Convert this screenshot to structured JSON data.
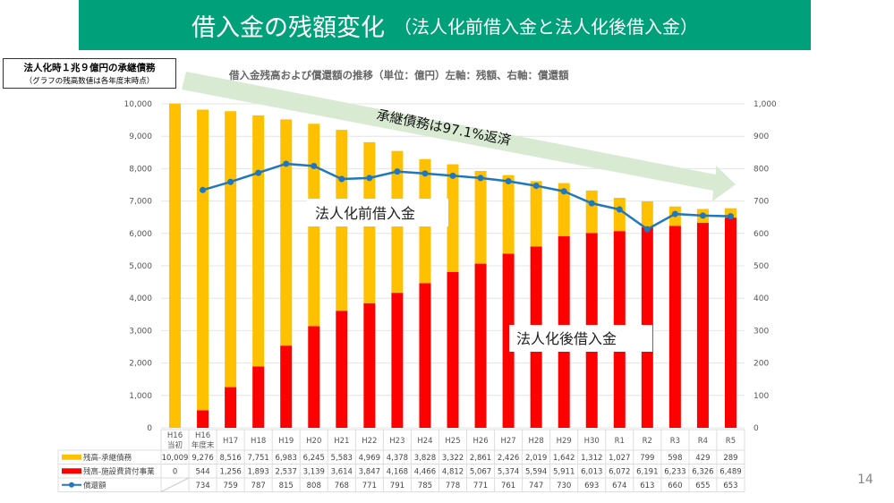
{
  "slide": {
    "title_main": "借入金の残額変化",
    "title_sub": "（法人化前借入金と法人化後借入金）",
    "note_line1": "法人化時１兆９億円の承継債務",
    "note_line2": "（グラフの残高数値は各年度末時点）",
    "arrow_label": "承継債務は97.1%返済",
    "label_pre": "法人化前借入金",
    "label_post": "法人化後借入金",
    "page_number": "14",
    "colors": {
      "header_bg": "#00a07a",
      "inherited_debt": "#ffc000",
      "facility_loan": "#ff0000",
      "repayment_line": "#1f77c0",
      "arrow": "#d9ead3"
    }
  },
  "chart_data": {
    "type": "bar",
    "stacked": true,
    "title": "借入金残高および償還額の推移（単位：億円）左軸：残額、右軸：償還額",
    "categories": [
      "H16\n当初",
      "H16\n年度末",
      "H17",
      "H18",
      "H19",
      "H20",
      "H21",
      "H22",
      "H23",
      "H24",
      "H25",
      "H26",
      "H27",
      "H28",
      "H29",
      "H30",
      "R1",
      "R2",
      "R3",
      "R4",
      "R5"
    ],
    "series": [
      {
        "name": "残高-承継債務",
        "type": "bar",
        "axis": "left",
        "color": "#ffc000",
        "values": [
          10009,
          9276,
          8516,
          7751,
          6983,
          6245,
          5583,
          4969,
          4378,
          3828,
          3322,
          2861,
          2426,
          2019,
          1642,
          1312,
          1027,
          799,
          598,
          429,
          289
        ]
      },
      {
        "name": "残高-施設費貸付事業",
        "type": "bar",
        "axis": "left",
        "color": "#ff0000",
        "values": [
          0,
          544,
          1256,
          1893,
          2537,
          3139,
          3614,
          3847,
          4168,
          4466,
          4812,
          5067,
          5374,
          5594,
          5911,
          6013,
          6072,
          6191,
          6233,
          6326,
          6489
        ]
      },
      {
        "name": "償還額",
        "type": "line",
        "axis": "right",
        "color": "#1f77c0",
        "values": [
          null,
          734,
          759,
          787,
          815,
          808,
          768,
          771,
          791,
          785,
          778,
          771,
          761,
          747,
          730,
          693,
          674,
          613,
          660,
          655,
          653
        ]
      }
    ],
    "left_axis": {
      "min": 0,
      "max": 10000,
      "ticks": [
        "0",
        "1,000",
        "2,000",
        "3,000",
        "4,000",
        "5,000",
        "6,000",
        "7,000",
        "8,000",
        "9,000",
        "10,000"
      ]
    },
    "right_axis": {
      "min": 0,
      "max": 1000,
      "ticks": [
        "0",
        "100",
        "200",
        "300",
        "400",
        "500",
        "600",
        "700",
        "800",
        "900",
        "1,000"
      ]
    },
    "table": {
      "rows": [
        {
          "label": "残高-承継債務",
          "cells": [
            "10,009",
            "9,276",
            "8,516",
            "7,751",
            "6,983",
            "6,245",
            "5,583",
            "4,969",
            "4,378",
            "3,828",
            "3,322",
            "2,861",
            "2,426",
            "2,019",
            "1,642",
            "1,312",
            "1,027",
            "799",
            "598",
            "429",
            "289"
          ]
        },
        {
          "label": "残高-施設費貸付事業",
          "cells": [
            "0",
            "544",
            "1,256",
            "1,893",
            "2,537",
            "3,139",
            "3,614",
            "3,847",
            "4,168",
            "4,466",
            "4,812",
            "5,067",
            "5,374",
            "5,594",
            "5,911",
            "6,013",
            "6,072",
            "6,191",
            "6,233",
            "6,326",
            "6,489"
          ]
        },
        {
          "label": "償還額",
          "cells": [
            "",
            "734",
            "759",
            "787",
            "815",
            "808",
            "768",
            "771",
            "791",
            "785",
            "778",
            "771",
            "761",
            "747",
            "730",
            "693",
            "674",
            "613",
            "660",
            "655",
            "653"
          ]
        }
      ]
    },
    "grid": true,
    "legend": "data-table"
  }
}
